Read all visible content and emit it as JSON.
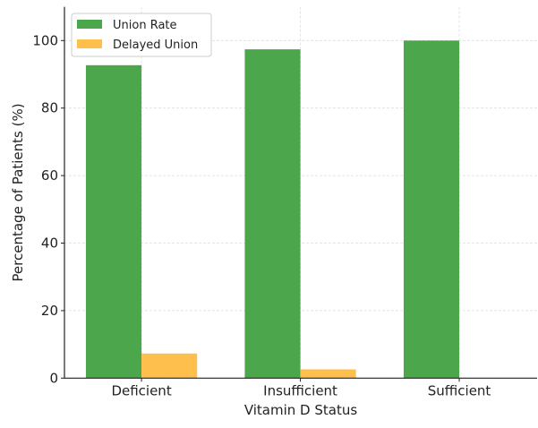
{
  "chart_data": {
    "type": "bar",
    "title": "",
    "xlabel": "Vitamin D Status",
    "ylabel": "Percentage of Patients (%)",
    "categories": [
      "Deficient",
      "Insufficient",
      "Sufficient"
    ],
    "series": [
      {
        "name": "Union Rate",
        "color": "#4ca64c",
        "values": [
          92.7,
          97.4,
          100
        ]
      },
      {
        "name": "Delayed Union",
        "color": "#ffbf4d",
        "values": [
          7.3,
          2.6,
          0
        ]
      }
    ],
    "ylim": [
      0,
      110
    ],
    "yticks": [
      0,
      20,
      40,
      60,
      80,
      100
    ],
    "grid": true,
    "legend": "top-left"
  }
}
